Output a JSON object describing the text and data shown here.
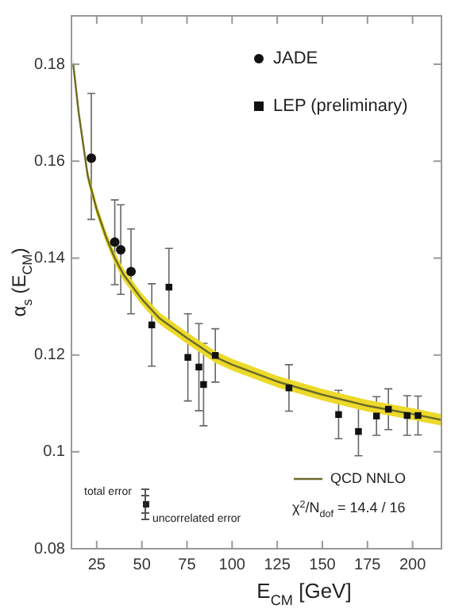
{
  "chart_data": {
    "type": "scatter",
    "xlabel": "E$_{CM}$ [GeV]",
    "ylabel": "α$_{s}$ (E$_{CM}$)",
    "xlim": [
      11,
      216
    ],
    "xticks": [
      25,
      50,
      75,
      100,
      125,
      150,
      175,
      200
    ],
    "ylim": [
      0.08,
      0.19
    ],
    "yticks": [
      0.08,
      0.1,
      0.12,
      0.14,
      0.16,
      0.18
    ],
    "grid": false,
    "legend": "top right",
    "series": [
      {
        "name": "JADE",
        "marker": "circle",
        "color": "#111111",
        "x": [
          22,
          35,
          38.3,
          44
        ],
        "values": [
          0.1606,
          0.1433,
          0.1417,
          0.1372
        ],
        "errors": [
          [
            0.148,
            0.174
          ],
          [
            0.1345,
            0.152
          ],
          [
            0.1325,
            0.151
          ],
          [
            0.1285,
            0.146
          ]
        ]
      },
      {
        "name": "LEP (preliminary)",
        "marker": "square",
        "color": "#111111",
        "x": [
          55.5,
          65,
          75.5,
          81.6,
          84.2,
          90.7,
          131.5,
          159,
          170,
          180,
          186.6,
          197,
          203
        ],
        "values": [
          0.1262,
          0.134,
          0.1195,
          0.1175,
          0.1139,
          0.1199,
          0.1132,
          0.1077,
          0.1042,
          0.1074,
          0.1088,
          0.1075,
          0.1075
        ],
        "errors": [
          0.0085,
          0.008,
          0.009,
          0.009,
          0.0085,
          0.0055,
          0.0048,
          0.005,
          0.005,
          0.004,
          0.0042,
          0.0041,
          0.004
        ]
      },
      {
        "name": "QCD NNLO",
        "type": "line",
        "line_style": "solid",
        "color": "#6b6b2a",
        "x": [
          12,
          15,
          20,
          25,
          30,
          35,
          40,
          50,
          60,
          75,
          91,
          100,
          125,
          150,
          175,
          200,
          216
        ],
        "values": [
          0.18,
          0.17,
          0.157,
          0.15,
          0.1445,
          0.14,
          0.1365,
          0.1315,
          0.1275,
          0.1235,
          0.1195,
          0.118,
          0.1145,
          0.1118,
          0.1095,
          0.1078,
          0.1066
        ],
        "lower": [
          0.1785,
          0.1687,
          0.1558,
          0.1488,
          0.1433,
          0.1388,
          0.1353,
          0.1303,
          0.1263,
          0.1223,
          0.1183,
          0.1168,
          0.1133,
          0.1106,
          0.1083,
          0.1066,
          0.1054
        ],
        "upper": [
          0.1815,
          0.1713,
          0.1582,
          0.1512,
          0.1457,
          0.1412,
          0.1377,
          0.1327,
          0.1287,
          0.1247,
          0.1207,
          0.1192,
          0.1157,
          0.113,
          0.1107,
          0.109,
          0.1078
        ]
      }
    ],
    "annotations": [
      "total error",
      "uncorrelated error",
      "χ$^{2}$/N$_{dof}$ = 14.4 / 16"
    ]
  }
}
